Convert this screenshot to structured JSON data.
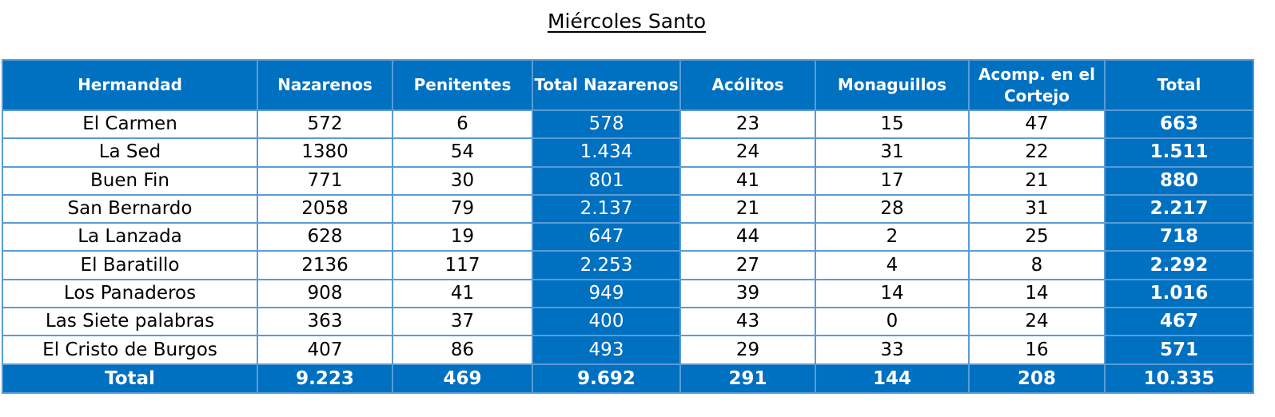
{
  "title": "Miércoles Santo",
  "colors": {
    "header_bg": "#0070C0",
    "border": "#5B9BD5"
  },
  "columns": [
    "Hermandad",
    "Nazarenos",
    "Penitentes",
    "Total Nazarenos",
    "Acólitos",
    "Monaguillos",
    "Acomp. en el Cortejo",
    "Total"
  ],
  "rows": [
    [
      "El Carmen",
      "572",
      "6",
      "578",
      "23",
      "15",
      "47",
      "663"
    ],
    [
      "La Sed",
      "1380",
      "54",
      "1.434",
      "24",
      "31",
      "22",
      "1.511"
    ],
    [
      "Buen Fin",
      "771",
      "30",
      "801",
      "41",
      "17",
      "21",
      "880"
    ],
    [
      "San Bernardo",
      "2058",
      "79",
      "2.137",
      "21",
      "28",
      "31",
      "2.217"
    ],
    [
      "La Lanzada",
      "628",
      "19",
      "647",
      "44",
      "2",
      "25",
      "718"
    ],
    [
      "El Baratillo",
      "2136",
      "117",
      "2.253",
      "27",
      "4",
      "8",
      "2.292"
    ],
    [
      "Los Panaderos",
      "908",
      "41",
      "949",
      "39",
      "14",
      "14",
      "1.016"
    ],
    [
      "Las Siete palabras",
      "363",
      "37",
      "400",
      "43",
      "0",
      "24",
      "467"
    ],
    [
      "El Cristo de Burgos",
      "407",
      "86",
      "493",
      "29",
      "33",
      "16",
      "571"
    ]
  ],
  "totals": [
    "Total",
    "9.223",
    "469",
    "9.692",
    "291",
    "144",
    "208",
    "10.335"
  ]
}
